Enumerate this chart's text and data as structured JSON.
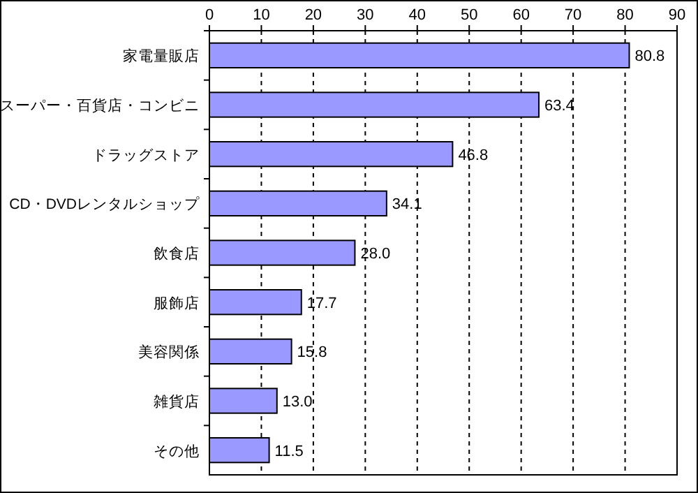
{
  "chart_data": {
    "type": "bar",
    "orientation": "horizontal",
    "categories": [
      "家電量販店",
      "スーパー・百貨店・コンビニ",
      "ドラッグストア",
      "CD・DVDレンタルショップ",
      "飲食店",
      "服飾店",
      "美容関係",
      "雑貨店",
      "その他"
    ],
    "values": [
      80.8,
      63.4,
      46.8,
      34.1,
      28.0,
      17.7,
      15.8,
      13.0,
      11.5
    ],
    "value_labels": [
      "80.8",
      "63.4",
      "46.8",
      "34.1",
      "28.0",
      "17.7",
      "15.8",
      "13.0",
      "11.5"
    ],
    "color": "#9999ff",
    "xlim": [
      0,
      90
    ],
    "xticks": [
      0,
      10,
      20,
      30,
      40,
      50,
      60,
      70,
      80,
      90
    ],
    "grid": "x"
  }
}
